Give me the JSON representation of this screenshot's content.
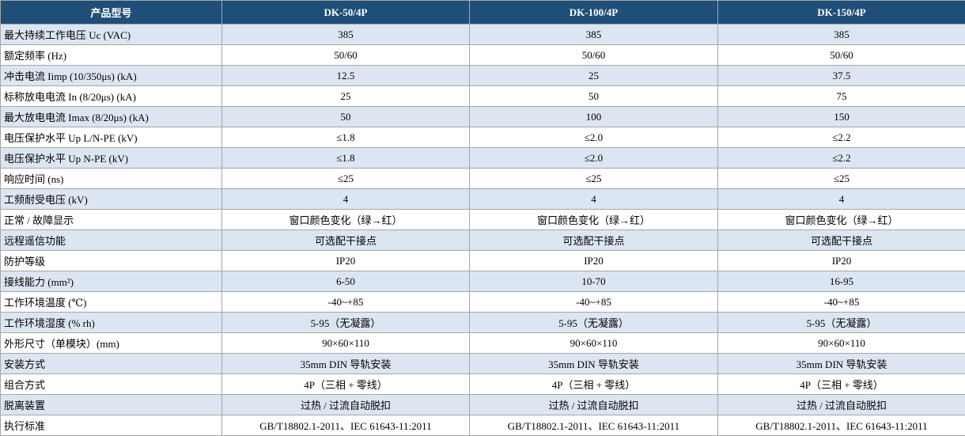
{
  "table": {
    "header": [
      "产品型号",
      "DK-50/4P",
      "DK-100/4P",
      "DK-150/4P"
    ],
    "rows": [
      [
        "最大持续工作电压 Uc (VAC)",
        "385",
        "385",
        "385"
      ],
      [
        "额定频率 (Hz)",
        "50/60",
        "50/60",
        "50/60"
      ],
      [
        "冲击电流 Iimp (10/350μs) (kA)",
        "12.5",
        "25",
        "37.5"
      ],
      [
        "标称放电电流 In (8/20μs) (kA)",
        "25",
        "50",
        "75"
      ],
      [
        "最大放电电流 Imax (8/20μs) (kA)",
        "50",
        "100",
        "150"
      ],
      [
        "电压保护水平 Up L/N-PE (kV)",
        "≤1.8",
        "≤2.0",
        "≤2.2"
      ],
      [
        "电压保护水平 Up N-PE (kV)",
        "≤1.8",
        "≤2.0",
        "≤2.2"
      ],
      [
        "响应时间 (ns)",
        "≤25",
        "≤25",
        "≤25"
      ],
      [
        "工频耐受电压 (kV)",
        "4",
        "4",
        "4"
      ],
      [
        "正常 / 故障显示",
        "窗口颜色变化（绿→红）",
        "窗口颜色变化（绿→红）",
        "窗口颜色变化（绿→红）"
      ],
      [
        "远程遥信功能",
        "可选配干接点",
        "可选配干接点",
        "可选配干接点"
      ],
      [
        "防护等级",
        "IP20",
        "IP20",
        "IP20"
      ],
      [
        "接线能力 (mm²)",
        "6-50",
        "10-70",
        "16-95"
      ],
      [
        "工作环境温度 (℃)",
        "-40~+85",
        "-40~+85",
        "-40~+85"
      ],
      [
        "工作环境湿度 (% rh)",
        "5-95（无凝露）",
        "5-95（无凝露）",
        "5-95（无凝露）"
      ],
      [
        "外形尺寸（单模块）(mm)",
        "90×60×110",
        "90×60×110",
        "90×60×110"
      ],
      [
        "安装方式",
        "35mm DIN 导轨安装",
        "35mm DIN 导轨安装",
        "35mm DIN 导轨安装"
      ],
      [
        "组合方式",
        "4P（三相 + 零线）",
        "4P（三相 + 零线）",
        "4P（三相 + 零线）"
      ],
      [
        "脱离装置",
        "过热 / 过流自动脱扣",
        "过热 / 过流自动脱扣",
        "过热 / 过流自动脱扣"
      ],
      [
        "执行标准",
        "GB/T18802.1-2011、IEC 61643-11:2011",
        "GB/T18802.1-2011、IEC 61643-11:2011",
        "GB/T18802.1-2011、IEC 61643-11:2011"
      ]
    ]
  }
}
